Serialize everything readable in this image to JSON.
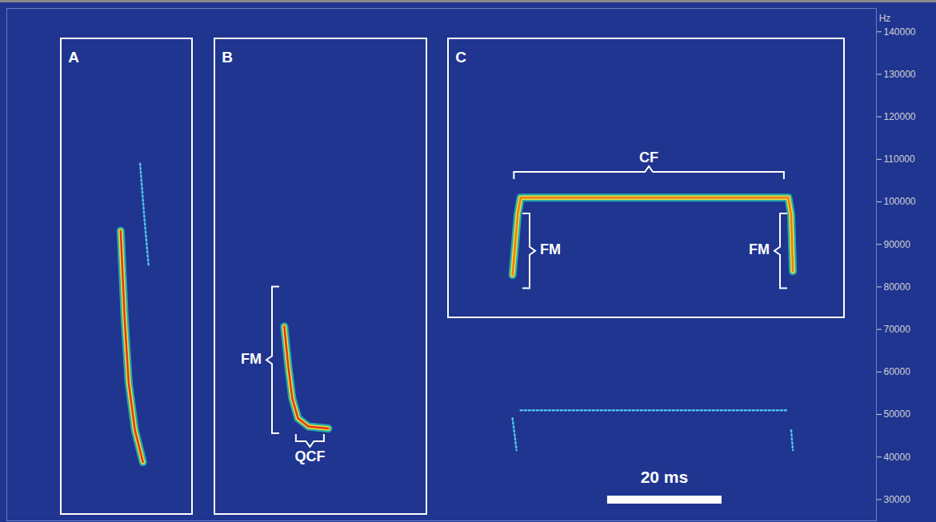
{
  "chart_data": {
    "type": "spectrogram",
    "y_label": "Hz",
    "xlim": [
      0,
      152
    ],
    "ylim": [
      25000,
      145500
    ],
    "yticks": [
      30000,
      40000,
      50000,
      60000,
      70000,
      80000,
      90000,
      100000,
      110000,
      120000,
      130000,
      140000
    ],
    "tick_labels": "y",
    "panels": [
      "A",
      "B",
      "C"
    ],
    "calls": [
      {
        "color": "#e8341c",
        "line_style": "solid",
        "x": [
          19.9,
          20.6,
          21.3,
          22.4,
          23.8
        ],
        "values": [
          93200,
          72500,
          57500,
          46300,
          38800
        ]
      },
      {
        "color": "#4fc3e8",
        "line_style": "dotted",
        "x": [
          23.3,
          24.0,
          24.8
        ],
        "values": [
          109000,
          97000,
          84700
        ]
      },
      {
        "color": "#e8341c",
        "line_style": "solid",
        "x": [
          48.5,
          49.2,
          49.9,
          50.9,
          52.7,
          56.2
        ],
        "values": [
          70700,
          61300,
          53800,
          49100,
          47200,
          46700
        ]
      },
      {
        "color": "#f07a1a",
        "line_style": "solid",
        "x": [
          88.4,
          89.3,
          89.8,
          136.6,
          137.1,
          137.4
        ],
        "values": [
          82800,
          97000,
          101000,
          101000,
          97000,
          83700
        ]
      },
      {
        "color": "#4fc3e8",
        "line_style": "dotted",
        "x": [
          88.4,
          89.1,
          89.5,
          89.8,
          136.6,
          137.0,
          137.1,
          137.4
        ],
        "values": [
          49100,
          41600,
          null,
          51000,
          51000,
          null,
          46300,
          41600
        ]
      }
    ],
    "annotations": [
      {
        "text": "FM",
        "axis": "y",
        "range": [
          45500,
          80000
        ]
      },
      {
        "text": "QCF",
        "axis": "x",
        "range": [
          50.6,
          55.5
        ]
      },
      {
        "text": "CF",
        "axis": "x",
        "range": [
          88.7,
          135.9
        ]
      },
      {
        "text": "FM",
        "axis": "y",
        "range": [
          79600,
          97200
        ]
      },
      {
        "text": "FM",
        "axis": "y",
        "range": [
          79600,
          97200
        ]
      }
    ],
    "scale_bar": {
      "value": 20,
      "label": "20 ms"
    }
  }
}
